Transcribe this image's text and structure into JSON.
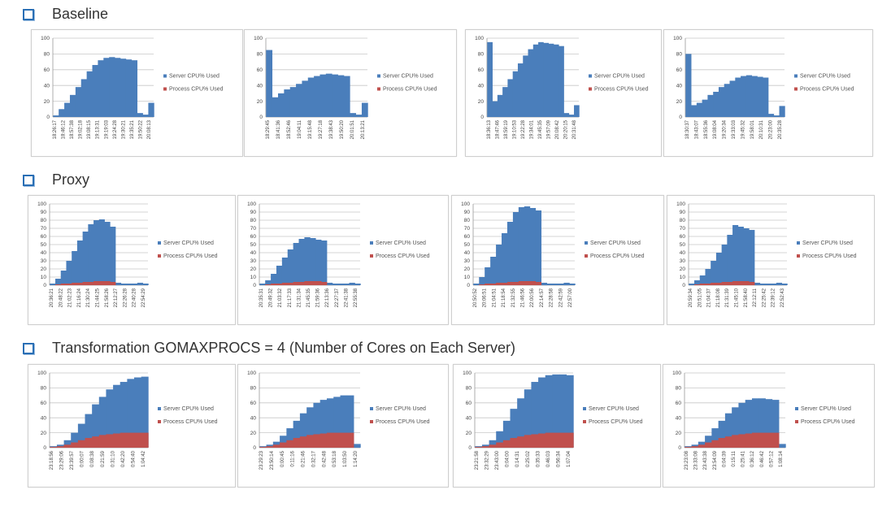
{
  "sections": [
    {
      "title": "Baseline"
    },
    {
      "title": "Proxy"
    },
    {
      "title": "Transformation GOMAXPROCS = 4 (Number of Cores on Each Server)"
    }
  ],
  "colors": {
    "server": "#4a7ebb",
    "process": "#c0504d",
    "bullet": "#2a6fb5"
  },
  "chart_data": [
    {
      "id": "b1",
      "type": "area",
      "section": "Baseline",
      "ylim": [
        0,
        100
      ],
      "yticks": [
        0,
        20,
        40,
        60,
        80,
        100
      ],
      "legend": {
        "position": "right",
        "stacked": true
      },
      "series": [
        {
          "name": "Server CPU% Used",
          "values": [
            2,
            10,
            18,
            28,
            38,
            48,
            58,
            66,
            72,
            75,
            76,
            75,
            74,
            73,
            72,
            5,
            3,
            18
          ]
        },
        {
          "name": "Process CPU% Used",
          "values": [
            0,
            0,
            0,
            0,
            0,
            0,
            0,
            0,
            0,
            0,
            0,
            0,
            0,
            0,
            0,
            0,
            0,
            0
          ]
        }
      ],
      "xticks": [
        "18:26:17",
        "18:46:12",
        "18:57:38",
        "19:02:18",
        "19:08:15",
        "19:13:31",
        "19:19:03",
        "19:24:28",
        "19:30:21",
        "19:35:21",
        "19:50:22",
        "20:08:13"
      ]
    },
    {
      "id": "b2",
      "type": "area",
      "section": "Baseline",
      "ylim": [
        0,
        100
      ],
      "yticks": [
        0,
        20,
        40,
        60,
        80,
        100
      ],
      "legend": {
        "position": "right",
        "stacked": true
      },
      "series": [
        {
          "name": "Server CPU% Used",
          "values": [
            85,
            25,
            30,
            35,
            38,
            42,
            46,
            50,
            52,
            54,
            55,
            54,
            53,
            52,
            5,
            3,
            18
          ]
        },
        {
          "name": "Process CPU% Used",
          "values": [
            0,
            0,
            0,
            0,
            0,
            0,
            0,
            0,
            0,
            0,
            0,
            0,
            0,
            0,
            0,
            0,
            0
          ]
        }
      ],
      "xticks": [
        "18:29:45",
        "18:41:36",
        "18:52:46",
        "19:04:11",
        "19:15:48",
        "19:27:18",
        "19:38:43",
        "19:50:20",
        "20:01:51",
        "20:13:21"
      ]
    },
    {
      "id": "b3",
      "type": "area",
      "section": "Baseline",
      "ylim": [
        0,
        100
      ],
      "yticks": [
        0,
        20,
        40,
        60,
        80,
        100
      ],
      "legend": {
        "position": "right",
        "stacked": true
      },
      "series": [
        {
          "name": "Server CPU% Used",
          "values": [
            95,
            20,
            28,
            38,
            48,
            58,
            68,
            78,
            86,
            92,
            95,
            94,
            93,
            92,
            90,
            5,
            3,
            15
          ]
        },
        {
          "name": "Process CPU% Used",
          "values": [
            0,
            0,
            0,
            0,
            0,
            0,
            0,
            0,
            0,
            0,
            0,
            0,
            0,
            0,
            0,
            0,
            0,
            0
          ]
        }
      ],
      "xticks": [
        "18:36:13",
        "18:47:46",
        "18:59:19",
        "19:10:53",
        "19:22:28",
        "19:34:01",
        "19:45:35",
        "19:57:09",
        "20:08:42",
        "20:20:15",
        "20:31:48"
      ]
    },
    {
      "id": "b4",
      "type": "area",
      "section": "Baseline",
      "ylim": [
        0,
        100
      ],
      "yticks": [
        0,
        20,
        40,
        60,
        80,
        100
      ],
      "legend": {
        "position": "right",
        "stacked": true
      },
      "series": [
        {
          "name": "Server CPU% Used",
          "values": [
            80,
            15,
            18,
            22,
            28,
            32,
            38,
            42,
            46,
            50,
            52,
            53,
            52,
            51,
            50,
            4,
            2,
            14
          ]
        },
        {
          "name": "Process CPU% Used",
          "values": [
            0,
            0,
            0,
            0,
            0,
            0,
            0,
            0,
            0,
            0,
            0,
            0,
            0,
            0,
            0,
            0,
            0,
            0
          ]
        }
      ],
      "xticks": [
        "18:30:37",
        "18:43:07",
        "18:55:36",
        "19:08:04",
        "19:20:34",
        "19:33:03",
        "19:45:32",
        "19:58:01",
        "20:10:31",
        "20:23:00",
        "20:35:28"
      ]
    },
    {
      "id": "p1",
      "type": "area",
      "section": "Proxy",
      "ylim": [
        0,
        100
      ],
      "yticks": [
        0,
        10,
        20,
        30,
        40,
        50,
        60,
        70,
        80,
        90,
        100
      ],
      "legend": {
        "position": "right",
        "stacked": true
      },
      "series": [
        {
          "name": "Server CPU% Used",
          "values": [
            2,
            8,
            18,
            30,
            42,
            55,
            66,
            75,
            80,
            81,
            78,
            72,
            3,
            2,
            2,
            2,
            3,
            2
          ]
        },
        {
          "name": "Process CPU% Used",
          "values": [
            0,
            1,
            2,
            2,
            3,
            3,
            4,
            4,
            5,
            5,
            5,
            4,
            0,
            0,
            0,
            0,
            0,
            0
          ]
        }
      ],
      "xticks": [
        "20:36:21",
        "20:48:22",
        "21:02:23",
        "21:16:24",
        "21:30:24",
        "21:44:25",
        "21:58:26",
        "22:12:27",
        "22:26:28",
        "22:40:28",
        "22:54:29"
      ]
    },
    {
      "id": "p2",
      "type": "area",
      "section": "Proxy",
      "ylim": [
        0,
        100
      ],
      "yticks": [
        0,
        10,
        20,
        30,
        40,
        50,
        60,
        70,
        80,
        90,
        100
      ],
      "legend": {
        "position": "right",
        "stacked": true
      },
      "series": [
        {
          "name": "Server CPU% Used",
          "values": [
            2,
            6,
            14,
            24,
            34,
            44,
            52,
            57,
            59,
            58,
            56,
            55,
            3,
            2,
            2,
            2,
            3,
            2
          ]
        },
        {
          "name": "Process CPU% Used",
          "values": [
            0,
            1,
            2,
            2,
            3,
            3,
            4,
            4,
            5,
            5,
            5,
            4,
            0,
            0,
            0,
            0,
            0,
            0
          ]
        }
      ],
      "xticks": [
        "20:35:31",
        "20:49:32",
        "21:03:32",
        "21:17:33",
        "21:31:34",
        "21:45:35",
        "21:59:36",
        "22:13:36",
        "22:27:37",
        "22:41:38",
        "22:55:38"
      ]
    },
    {
      "id": "p3",
      "type": "area",
      "section": "Proxy",
      "ylim": [
        0,
        100
      ],
      "yticks": [
        0,
        10,
        20,
        30,
        40,
        50,
        60,
        70,
        80,
        90,
        100
      ],
      "legend": {
        "position": "right",
        "stacked": true
      },
      "series": [
        {
          "name": "Server CPU% Used",
          "values": [
            2,
            10,
            22,
            35,
            50,
            64,
            78,
            90,
            96,
            97,
            95,
            92,
            3,
            2,
            2,
            2,
            3,
            2
          ]
        },
        {
          "name": "Process CPU% Used",
          "values": [
            0,
            1,
            2,
            2,
            3,
            3,
            4,
            4,
            5,
            5,
            5,
            4,
            0,
            0,
            0,
            0,
            0,
            0
          ]
        }
      ],
      "xticks": [
        "20:50:52",
        "20:06:51",
        "21:04:51",
        "21:18:54",
        "21:32:55",
        "21:46:56",
        "22:00:56",
        "22:14:57",
        "22:28:58",
        "22:42:59",
        "22:57:00"
      ]
    },
    {
      "id": "p4",
      "type": "area",
      "section": "Proxy",
      "ylim": [
        0,
        100
      ],
      "yticks": [
        0,
        10,
        20,
        30,
        40,
        50,
        60,
        70,
        80,
        90,
        100
      ],
      "legend": {
        "position": "right",
        "stacked": true
      },
      "series": [
        {
          "name": "Server CPU% Used",
          "values": [
            2,
            6,
            12,
            20,
            30,
            40,
            50,
            62,
            74,
            72,
            70,
            68,
            3,
            2,
            2,
            2,
            3,
            2
          ]
        },
        {
          "name": "Process CPU% Used",
          "values": [
            0,
            1,
            2,
            2,
            3,
            3,
            4,
            4,
            5,
            5,
            5,
            4,
            0,
            0,
            0,
            0,
            0,
            0
          ]
        }
      ],
      "xticks": [
        "20:59:34",
        "20:51:05",
        "21:04:37",
        "21:18:08",
        "21:31:39",
        "21:45:10",
        "21:58:40",
        "22:12:11",
        "22:25:42",
        "22:39:12",
        "22:52:43"
      ]
    },
    {
      "id": "t1",
      "type": "area",
      "section": "Transformation",
      "ylim": [
        0,
        100
      ],
      "yticks": [
        0,
        20,
        40,
        60,
        80,
        100
      ],
      "legend": {
        "position": "right",
        "stacked": true
      },
      "series": [
        {
          "name": "Server CPU% Used",
          "values": [
            2,
            4,
            10,
            20,
            32,
            45,
            58,
            68,
            78,
            84,
            88,
            92,
            94,
            95
          ]
        },
        {
          "name": "Process CPU% Used",
          "values": [
            1,
            2,
            4,
            7,
            10,
            13,
            15,
            17,
            18,
            19,
            20,
            20,
            20,
            20
          ]
        }
      ],
      "xticks": [
        "23:18:56",
        "23:29:06",
        "23:39:57",
        "0:00:07",
        "0:08:38",
        "0:21:59",
        "0:31:10",
        "0:42:20",
        "0:54:40",
        "1:04:42"
      ]
    },
    {
      "id": "t2",
      "type": "area",
      "section": "Transformation",
      "ylim": [
        0,
        100
      ],
      "yticks": [
        0,
        20,
        40,
        60,
        80,
        100
      ],
      "legend": {
        "position": "right",
        "stacked": true
      },
      "series": [
        {
          "name": "Server CPU% Used",
          "values": [
            2,
            4,
            8,
            16,
            26,
            36,
            46,
            54,
            60,
            64,
            66,
            68,
            70,
            70,
            5
          ]
        },
        {
          "name": "Process CPU% Used",
          "values": [
            1,
            2,
            4,
            7,
            10,
            13,
            15,
            17,
            18,
            19,
            20,
            20,
            20,
            20,
            0
          ]
        }
      ],
      "xticks": [
        "23:29:23",
        "23:50:14",
        "0:00:45",
        "0:11:16",
        "0:21:46",
        "0:32:17",
        "0:42:48",
        "0:53:18",
        "1:03:50",
        "1:14:20"
      ]
    },
    {
      "id": "t3",
      "type": "area",
      "section": "Transformation",
      "ylim": [
        0,
        100
      ],
      "yticks": [
        0,
        20,
        40,
        60,
        80,
        100
      ],
      "legend": {
        "position": "right",
        "stacked": true
      },
      "series": [
        {
          "name": "Server CPU% Used",
          "values": [
            2,
            4,
            10,
            22,
            36,
            52,
            66,
            78,
            88,
            94,
            97,
            98,
            98,
            97
          ]
        },
        {
          "name": "Process CPU% Used",
          "values": [
            1,
            2,
            4,
            7,
            10,
            13,
            15,
            17,
            18,
            19,
            20,
            20,
            20,
            20
          ]
        }
      ],
      "xticks": [
        "23:21:58",
        "23:32:29",
        "23:43:00",
        "0:04:00",
        "0:14:31",
        "0:25:02",
        "0:35:33",
        "0:46:03",
        "0:56:34",
        "1:07:04"
      ]
    },
    {
      "id": "t4",
      "type": "area",
      "section": "Transformation",
      "ylim": [
        0,
        100
      ],
      "yticks": [
        0,
        20,
        40,
        60,
        80,
        100
      ],
      "legend": {
        "position": "right",
        "stacked": true
      },
      "series": [
        {
          "name": "Server CPU% Used",
          "values": [
            2,
            4,
            8,
            16,
            26,
            36,
            46,
            54,
            60,
            64,
            66,
            66,
            65,
            64,
            5
          ]
        },
        {
          "name": "Process CPU% Used",
          "values": [
            1,
            2,
            4,
            7,
            10,
            13,
            15,
            17,
            18,
            19,
            20,
            20,
            20,
            20,
            0
          ]
        }
      ],
      "xticks": [
        "23:23:08",
        "23:33:08",
        "23:43:38",
        "23:54:09",
        "0:04:39",
        "0:15:11",
        "0:25:41",
        "0:36:12",
        "0:46:42",
        "0:57:12",
        "1:08:14"
      ]
    }
  ]
}
